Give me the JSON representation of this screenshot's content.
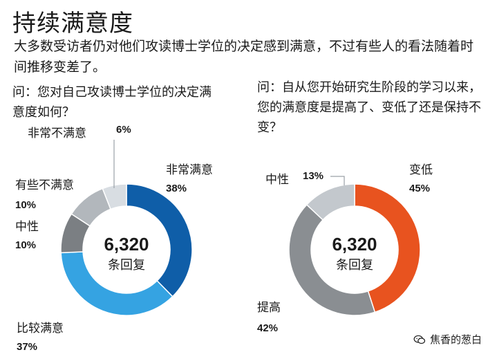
{
  "header": {
    "title": "持续满意度",
    "subtitle": "大多数受访者仍对他们攻读博士学位的决定感到满意，不过有些人的看法随着时间推移变差了。"
  },
  "chart_data": [
    {
      "type": "pie",
      "question": "问：您对自己攻读博士学位的决定满意度如何？",
      "center_value": "6,320",
      "center_label": "条回复",
      "categories": [
        "非常满意",
        "比较满意",
        "中性",
        "有些不满意",
        "非常不满意"
      ],
      "values": [
        38,
        37,
        10,
        10,
        6
      ],
      "value_labels": [
        "38%",
        "37%",
        "10%",
        "10%",
        "6%"
      ],
      "colors": [
        "#0f5ea8",
        "#35a3e2",
        "#7b7f83",
        "#b2b7bc",
        "#d8dde2"
      ]
    },
    {
      "type": "pie",
      "question": "问：自从您开始研究生阶段的学习以来，您的满意度是提高了、变低了还是保持不变？",
      "center_value": "6,320",
      "center_label": "条回复",
      "categories": [
        "变低",
        "提高",
        "中性"
      ],
      "values": [
        45,
        42,
        13
      ],
      "value_labels": [
        "45%",
        "42%",
        "13%"
      ],
      "colors": [
        "#e8531f",
        "#8a8e92",
        "#c3c8cd"
      ]
    }
  ],
  "watermark": {
    "icon": "wechat-icon",
    "text": "焦香的葱白"
  }
}
